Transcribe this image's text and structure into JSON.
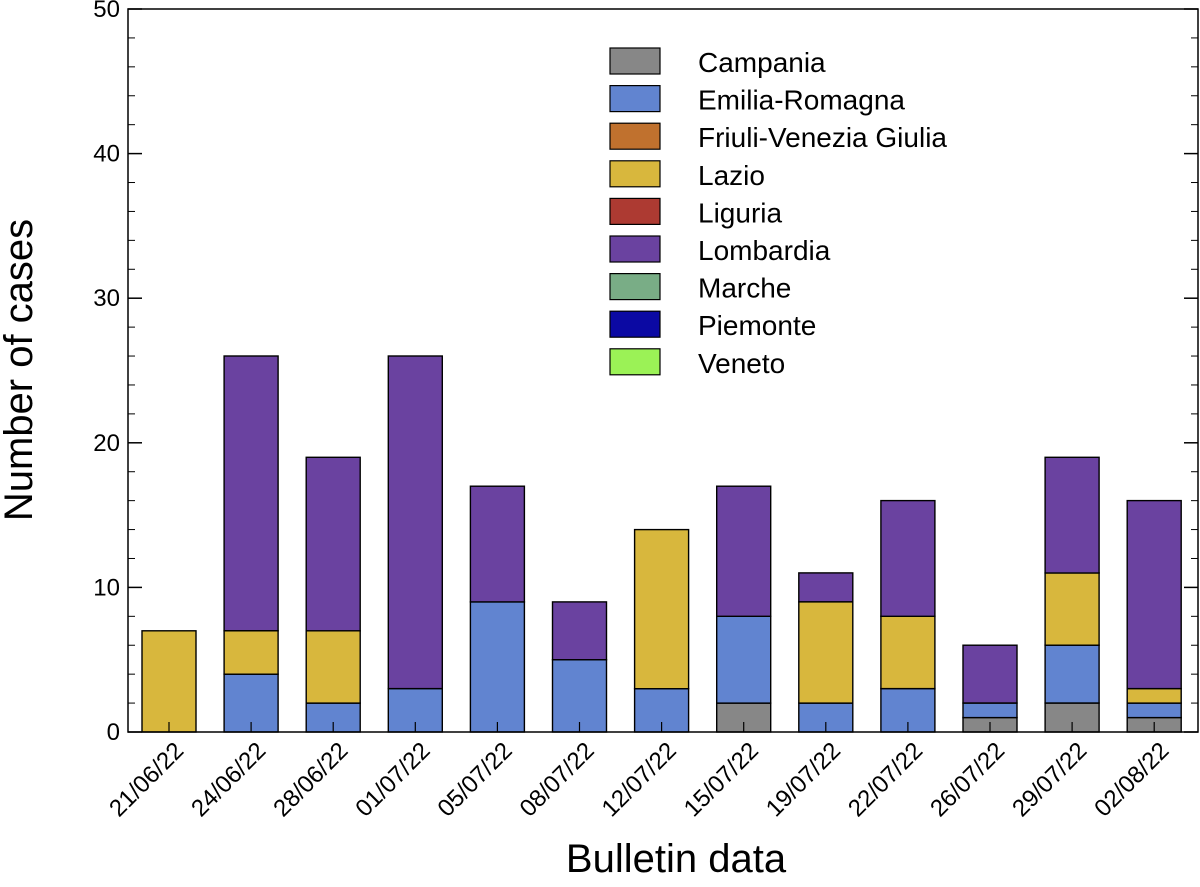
{
  "chart_data": {
    "type": "stacked-bar",
    "title": "",
    "xlabel": "Bulletin data",
    "ylabel": "Number of cases",
    "ylim": [
      0,
      50
    ],
    "yticks": [
      0,
      10,
      20,
      30,
      40,
      50
    ],
    "grid": false,
    "legend_position": "top-right",
    "categories": [
      "21/06/22",
      "24/06/22",
      "28/06/22",
      "01/07/22",
      "05/07/22",
      "08/07/22",
      "12/07/22",
      "15/07/22",
      "19/07/22",
      "22/07/22",
      "26/07/22",
      "29/07/22",
      "02/08/22"
    ],
    "series": [
      {
        "name": "Campania",
        "color": "#878787",
        "values": [
          0,
          0,
          0,
          0,
          0,
          0,
          0,
          2,
          0,
          0,
          1,
          2,
          1
        ]
      },
      {
        "name": "Emilia-Romagna",
        "color": "#6184d0",
        "values": [
          0,
          4,
          2,
          3,
          9,
          5,
          3,
          6,
          2,
          3,
          1,
          4,
          1
        ]
      },
      {
        "name": "Friuli-Venezia Giulia",
        "color": "#c0712e",
        "values": [
          0,
          0,
          0,
          0,
          0,
          0,
          0,
          0,
          0,
          0,
          0,
          0,
          0
        ]
      },
      {
        "name": "Lazio",
        "color": "#d8b73d",
        "values": [
          7,
          3,
          5,
          0,
          0,
          0,
          11,
          0,
          7,
          5,
          0,
          5,
          1
        ]
      },
      {
        "name": "Liguria",
        "color": "#ad3a32",
        "values": [
          0,
          0,
          0,
          0,
          0,
          0,
          0,
          0,
          0,
          0,
          0,
          0,
          0
        ]
      },
      {
        "name": "Lombardia",
        "color": "#6a42a0",
        "values": [
          0,
          19,
          12,
          23,
          8,
          4,
          0,
          9,
          2,
          8,
          4,
          8,
          13
        ]
      },
      {
        "name": "Marche",
        "color": "#79ad86",
        "values": [
          0,
          0,
          0,
          0,
          0,
          0,
          0,
          0,
          0,
          0,
          0,
          0,
          0
        ]
      },
      {
        "name": "Piemonte",
        "color": "#0b09a3",
        "values": [
          0,
          0,
          0,
          0,
          0,
          0,
          0,
          0,
          0,
          0,
          0,
          0,
          0
        ]
      },
      {
        "name": "Veneto",
        "color": "#9bf256",
        "values": [
          0,
          0,
          0,
          0,
          0,
          0,
          0,
          0,
          0,
          0,
          0,
          0,
          0
        ]
      }
    ]
  }
}
